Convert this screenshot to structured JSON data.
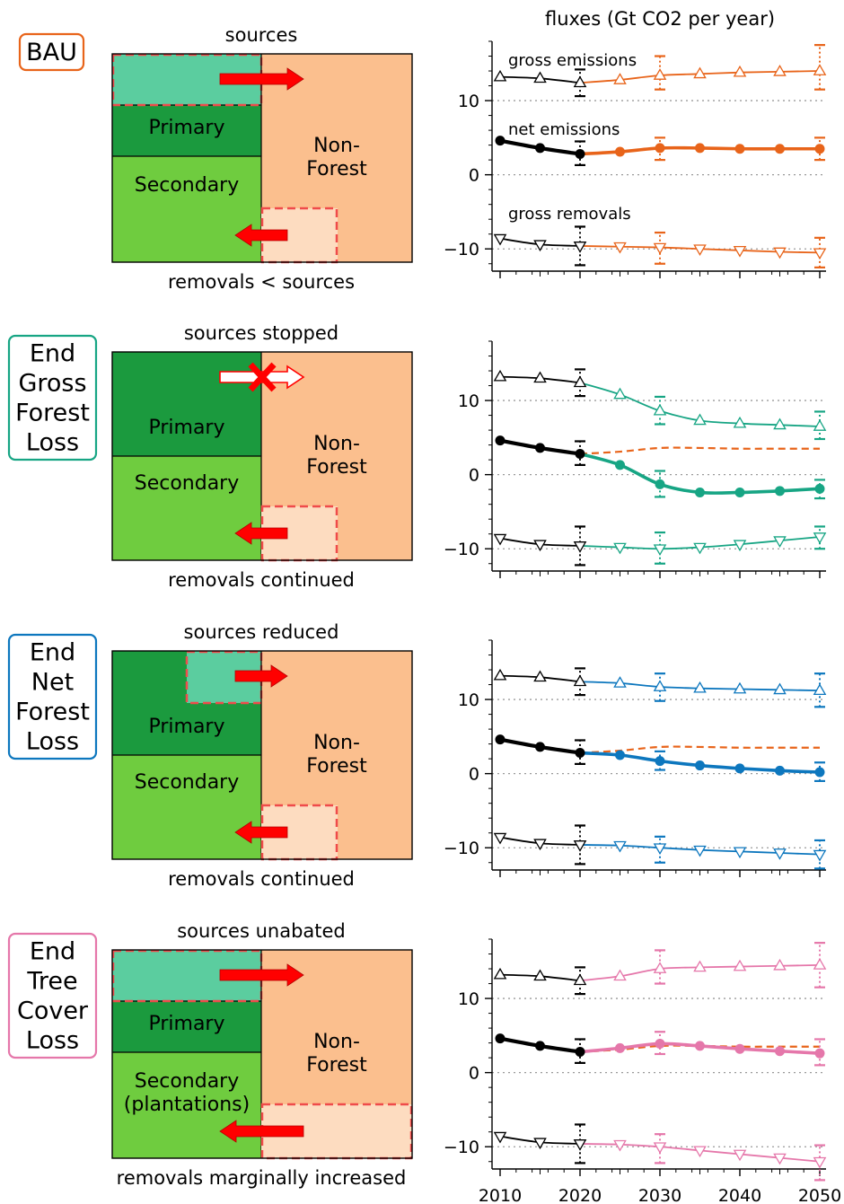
{
  "fig_title": "fluxes (Gt CO2 per year)",
  "colors": {
    "affected": "#5bcd9f",
    "primary": "#1b9a3e",
    "secondary": "#6fcc3f",
    "nonforest": "#fbbf8e",
    "removal_box": "#fddcc0",
    "dash_red": "#ef4b4b",
    "arrow_red": "#ff0000",
    "historical": "#000000"
  },
  "scenarios": [
    {
      "label": "BAU",
      "label_lines": [
        "BAU"
      ],
      "color": "#e8641a",
      "top_text": "sources",
      "bottom_text": "removals < sources",
      "box_labels": {
        "primary": "Primary",
        "secondary": [
          "Secondary"
        ],
        "nonforest": [
          "Non-",
          "Forest"
        ]
      },
      "annotations": {
        "gross_emissions": "gross emissions",
        "net_emissions": "net emissions",
        "gross_removals": "gross removals"
      }
    },
    {
      "label": "End Gross Forest Loss",
      "label_lines": [
        "End",
        "Gross",
        "Forest",
        "Loss"
      ],
      "color": "#17a584",
      "top_text": "sources stopped",
      "bottom_text": "removals continued",
      "box_labels": {
        "primary": "Primary",
        "secondary": [
          "Secondary"
        ],
        "nonforest": [
          "Non-",
          "Forest"
        ]
      }
    },
    {
      "label": "End Net Forest Loss",
      "label_lines": [
        "End",
        "Net",
        "Forest",
        "Loss"
      ],
      "color": "#0d77be",
      "top_text": "sources reduced",
      "bottom_text": "removals continued",
      "box_labels": {
        "primary": "Primary",
        "secondary": [
          "Secondary"
        ],
        "nonforest": [
          "Non-",
          "Forest"
        ]
      }
    },
    {
      "label": "End Tree Cover Loss",
      "label_lines": [
        "End",
        "Tree",
        "Cover",
        "Loss"
      ],
      "color": "#e577aa",
      "top_text": "sources unabated",
      "bottom_text": "removals marginally increased",
      "box_labels": {
        "primary": "Primary",
        "secondary": [
          "Secondary",
          "(plantations)"
        ],
        "nonforest": [
          "Non-",
          "Forest"
        ]
      }
    }
  ],
  "chart_data": [
    {
      "type": "line",
      "scenario": "BAU",
      "xlim": [
        2010,
        2050
      ],
      "ylim": [
        -13,
        18
      ],
      "yticks": [
        -10,
        0,
        10
      ],
      "xticks": [
        2010,
        2020,
        2030,
        2040,
        2050
      ],
      "reference_lines": [
        10,
        0,
        -10
      ],
      "historical": {
        "x": [
          2010,
          2015,
          2020
        ],
        "gross_emissions": [
          13.2,
          13.0,
          12.4
        ],
        "net_emissions": [
          4.6,
          3.6,
          2.8
        ],
        "gross_removals": [
          -8.6,
          -9.4,
          -9.6
        ],
        "err_2020": {
          "gross_emissions": [
            10.6,
            14.2
          ],
          "net_emissions": [
            1.3,
            4.5
          ],
          "gross_removals": [
            -12.2,
            -7.0
          ]
        }
      },
      "projection": {
        "x": [
          2020,
          2025,
          2030,
          2035,
          2040,
          2045,
          2050
        ],
        "gross_emissions": [
          12.4,
          12.8,
          13.4,
          13.6,
          13.8,
          13.9,
          14.0
        ],
        "net_emissions": [
          2.8,
          3.1,
          3.6,
          3.6,
          3.5,
          3.5,
          3.5
        ],
        "gross_removals": [
          -9.6,
          -9.7,
          -9.8,
          -10.0,
          -10.2,
          -10.4,
          -10.5
        ]
      },
      "errorbars": {
        "x": [
          2030,
          2050
        ],
        "gross_emissions": [
          [
            11.5,
            16.0
          ],
          [
            11.5,
            17.5
          ]
        ],
        "net_emissions": [
          [
            2.0,
            5.0
          ],
          [
            2.0,
            5.0
          ]
        ],
        "gross_removals": [
          [
            -12.0,
            -7.8
          ],
          [
            -12.5,
            -8.5
          ]
        ]
      }
    },
    {
      "type": "line",
      "scenario": "End Gross Forest Loss",
      "xlim": [
        2010,
        2050
      ],
      "ylim": [
        -13,
        18
      ],
      "yticks": [
        -10,
        0,
        10
      ],
      "xticks": [
        2010,
        2020,
        2030,
        2040,
        2050
      ],
      "reference_lines": [
        10,
        0,
        -10
      ],
      "historical": {
        "x": [
          2010,
          2015,
          2020
        ],
        "gross_emissions": [
          13.2,
          13.0,
          12.4
        ],
        "net_emissions": [
          4.6,
          3.6,
          2.8
        ],
        "gross_removals": [
          -8.6,
          -9.4,
          -9.6
        ],
        "err_2020": {
          "gross_emissions": [
            10.6,
            14.2
          ],
          "net_emissions": [
            1.3,
            4.5
          ],
          "gross_removals": [
            -12.2,
            -7.0
          ]
        }
      },
      "projection": {
        "x": [
          2020,
          2025,
          2030,
          2035,
          2040,
          2045,
          2050
        ],
        "gross_emissions": [
          12.4,
          10.8,
          8.6,
          7.3,
          6.9,
          6.7,
          6.5
        ],
        "net_emissions": [
          2.8,
          1.3,
          -1.3,
          -2.4,
          -2.4,
          -2.2,
          -1.9
        ],
        "gross_removals": [
          -9.6,
          -9.8,
          -10.0,
          -9.8,
          -9.4,
          -8.9,
          -8.4
        ]
      },
      "errorbars": {
        "x": [
          2030,
          2050
        ],
        "gross_emissions": [
          [
            6.8,
            10.5
          ],
          [
            4.8,
            8.5
          ]
        ],
        "net_emissions": [
          [
            -3.0,
            0.5
          ],
          [
            -3.2,
            -0.7
          ]
        ],
        "gross_removals": [
          [
            -12.0,
            -7.8
          ],
          [
            -10.0,
            -7.0
          ]
        ]
      },
      "baseline_dashed": {
        "name": "BAU",
        "x": [
          2020,
          2025,
          2030,
          2035,
          2040,
          2045,
          2050
        ],
        "y": [
          2.8,
          3.1,
          3.6,
          3.6,
          3.5,
          3.5,
          3.5
        ]
      }
    },
    {
      "type": "line",
      "scenario": "End Net Forest Loss",
      "xlim": [
        2010,
        2050
      ],
      "ylim": [
        -13,
        18
      ],
      "yticks": [
        -10,
        0,
        10
      ],
      "xticks": [
        2010,
        2020,
        2030,
        2040,
        2050
      ],
      "reference_lines": [
        10,
        0,
        -10
      ],
      "historical": {
        "x": [
          2010,
          2015,
          2020
        ],
        "gross_emissions": [
          13.2,
          13.0,
          12.4
        ],
        "net_emissions": [
          4.6,
          3.6,
          2.8
        ],
        "gross_removals": [
          -8.6,
          -9.4,
          -9.6
        ],
        "err_2020": {
          "gross_emissions": [
            10.6,
            14.2
          ],
          "net_emissions": [
            1.3,
            4.5
          ],
          "gross_removals": [
            -12.2,
            -7.0
          ]
        }
      },
      "projection": {
        "x": [
          2020,
          2025,
          2030,
          2035,
          2040,
          2045,
          2050
        ],
        "gross_emissions": [
          12.4,
          12.2,
          11.7,
          11.5,
          11.4,
          11.3,
          11.2
        ],
        "net_emissions": [
          2.8,
          2.5,
          1.7,
          1.1,
          0.7,
          0.4,
          0.2
        ],
        "gross_removals": [
          -9.6,
          -9.7,
          -10.0,
          -10.3,
          -10.5,
          -10.7,
          -10.9
        ]
      },
      "errorbars": {
        "x": [
          2030,
          2050
        ],
        "gross_emissions": [
          [
            9.8,
            13.5
          ],
          [
            9.0,
            13.5
          ]
        ],
        "net_emissions": [
          [
            0.5,
            3.0
          ],
          [
            -1.0,
            1.5
          ]
        ],
        "gross_removals": [
          [
            -12.0,
            -8.5
          ],
          [
            -12.8,
            -9.0
          ]
        ]
      },
      "baseline_dashed": {
        "name": "BAU",
        "x": [
          2020,
          2025,
          2030,
          2035,
          2040,
          2045,
          2050
        ],
        "y": [
          2.8,
          3.1,
          3.6,
          3.6,
          3.5,
          3.5,
          3.5
        ]
      }
    },
    {
      "type": "line",
      "scenario": "End Tree Cover Loss",
      "xlim": [
        2010,
        2050
      ],
      "ylim": [
        -13,
        18
      ],
      "yticks": [
        -10,
        0,
        10
      ],
      "xticks": [
        2010,
        2020,
        2030,
        2040,
        2050
      ],
      "reference_lines": [
        10,
        0,
        -10
      ],
      "historical": {
        "x": [
          2010,
          2015,
          2020
        ],
        "gross_emissions": [
          13.2,
          13.0,
          12.4
        ],
        "net_emissions": [
          4.6,
          3.6,
          2.8
        ],
        "gross_removals": [
          -8.6,
          -9.4,
          -9.6
        ],
        "err_2020": {
          "gross_emissions": [
            10.6,
            14.2
          ],
          "net_emissions": [
            1.3,
            4.5
          ],
          "gross_removals": [
            -12.2,
            -7.0
          ]
        }
      },
      "projection": {
        "x": [
          2020,
          2025,
          2030,
          2035,
          2040,
          2045,
          2050
        ],
        "gross_emissions": [
          12.4,
          13.0,
          14.0,
          14.2,
          14.3,
          14.4,
          14.5
        ],
        "net_emissions": [
          2.8,
          3.3,
          3.9,
          3.6,
          3.2,
          2.9,
          2.6
        ],
        "gross_removals": [
          -9.6,
          -9.7,
          -10.0,
          -10.5,
          -11.0,
          -11.5,
          -12.0
        ]
      },
      "errorbars": {
        "x": [
          2030,
          2050
        ],
        "gross_emissions": [
          [
            12.0,
            16.5
          ],
          [
            11.5,
            17.5
          ]
        ],
        "net_emissions": [
          [
            2.5,
            5.5
          ],
          [
            1.0,
            4.5
          ]
        ],
        "gross_removals": [
          [
            -12.2,
            -8.3
          ],
          [
            -14.5,
            -9.8
          ]
        ]
      },
      "baseline_dashed": {
        "name": "BAU",
        "x": [
          2020,
          2025,
          2030,
          2035,
          2040,
          2045,
          2050
        ],
        "y": [
          2.8,
          3.1,
          3.6,
          3.6,
          3.5,
          3.5,
          3.5
        ]
      }
    }
  ]
}
